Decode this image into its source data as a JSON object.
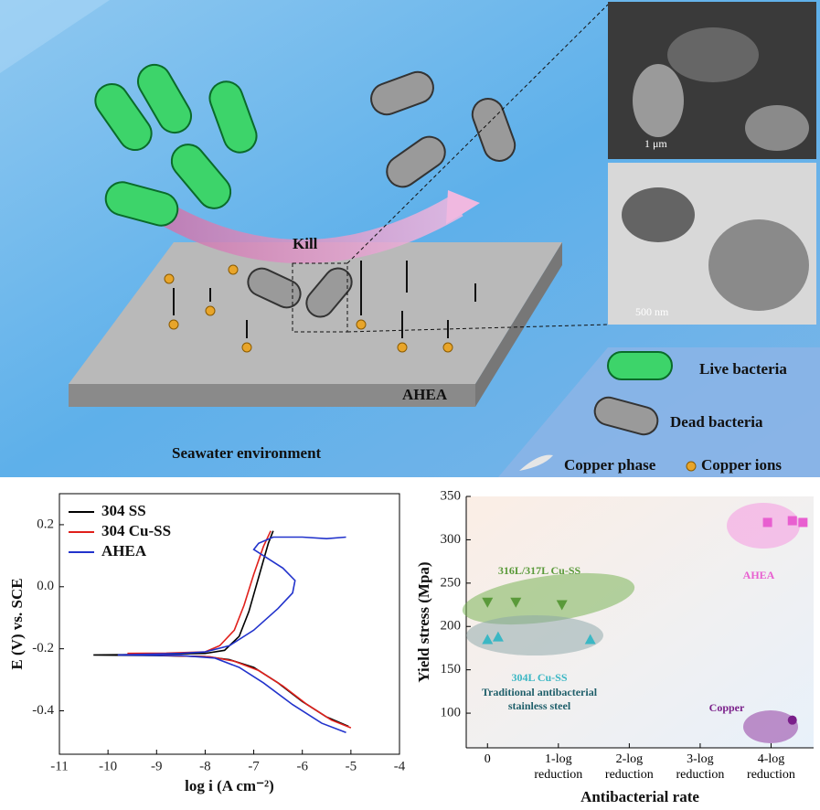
{
  "illustration": {
    "kill": "Kill",
    "substrate": "AHEA",
    "environment": "Seawater environment",
    "legend": {
      "live": "Live bacteria",
      "dead": "Dead bacteria",
      "phase": "Copper phase",
      "ions": "Copper ions"
    },
    "sem_scale": "1 μm",
    "tem_scale": "500 nm"
  },
  "chart_data": [
    {
      "type": "line",
      "x_label": "log i (A cm⁻²)",
      "y_label": "E (V) vs. SCE",
      "xlim": [
        -11,
        -4
      ],
      "xticks": [
        -11,
        -10,
        -9,
        -8,
        -7,
        -6,
        -5,
        -4
      ],
      "ylim": [
        -0.54,
        0.3
      ],
      "yticks": [
        -0.4,
        -0.2,
        {
          "value": 0,
          "label": "0.0"
        },
        0.2
      ],
      "legend": "upper left",
      "series": [
        {
          "name": "304 SS",
          "color": "#000000",
          "x": [
            -5.05,
            -5.5,
            -6.0,
            -6.5,
            -7.0,
            -7.5,
            -8.0,
            -9.0,
            -10.3,
            -9.0,
            -8.0,
            -7.6,
            -7.3,
            -7.1,
            -6.9,
            -6.7,
            -6.6
          ],
          "values": [
            -0.45,
            -0.42,
            -0.37,
            -0.31,
            -0.26,
            -0.235,
            -0.225,
            -0.222,
            -0.22,
            -0.218,
            -0.215,
            -0.205,
            -0.16,
            -0.08,
            0.03,
            0.14,
            0.18
          ]
        },
        {
          "name": "304 Cu-SS",
          "color": "#e0201b",
          "x": [
            -5.0,
            -5.4,
            -5.9,
            -6.4,
            -6.9,
            -7.4,
            -7.9,
            -8.8,
            -9.6,
            -8.8,
            -8.0,
            -7.7,
            -7.4,
            -7.2,
            -7.0,
            -6.8,
            -6.65
          ],
          "values": [
            -0.455,
            -0.43,
            -0.38,
            -0.32,
            -0.27,
            -0.24,
            -0.226,
            -0.222,
            -0.215,
            -0.214,
            -0.21,
            -0.19,
            -0.14,
            -0.06,
            0.04,
            0.13,
            0.18
          ]
        },
        {
          "name": "AHEA",
          "color": "#2233cc",
          "x": [
            -5.1,
            -5.6,
            -6.2,
            -6.8,
            -7.3,
            -7.8,
            -8.5,
            -9.8,
            -8.5,
            -8.0,
            -7.5,
            -7.0,
            -6.5,
            -6.2,
            -6.15,
            -6.4,
            -6.8,
            -7.0,
            -6.9,
            -6.6,
            -6.0,
            -5.5,
            -5.1
          ],
          "values": [
            -0.47,
            -0.44,
            -0.38,
            -0.31,
            -0.26,
            -0.23,
            -0.222,
            -0.22,
            -0.215,
            -0.21,
            -0.19,
            -0.14,
            -0.07,
            -0.02,
            0.02,
            0.06,
            0.1,
            0.12,
            0.14,
            0.16,
            0.16,
            0.155,
            0.16
          ]
        }
      ]
    },
    {
      "type": "scatter",
      "x_label": "Antibacterial rate",
      "y_label": "Yield stress (Mpa)",
      "xlim": [
        -0.3,
        4.6
      ],
      "xticks": [
        0,
        {
          "value": 1,
          "label": "1-log reduction"
        },
        {
          "value": 2,
          "label": "2-log reduction"
        },
        {
          "value": 3,
          "label": "3-log reduction"
        },
        {
          "value": 4,
          "label": "4-log reduction"
        }
      ],
      "ylim": [
        60,
        350
      ],
      "yticks": [
        100,
        150,
        200,
        250,
        300,
        350
      ],
      "annotation": "Traditional antibacterial stainless steel",
      "series": [
        {
          "name": "316L/317L Cu-SS",
          "color": "#5a9a3a",
          "marker": "triangle-down",
          "x": [
            0,
            0.4,
            1.05
          ],
          "values": [
            228,
            228,
            225
          ]
        },
        {
          "name": "304L Cu-SS",
          "color": "#3bb7c4",
          "marker": "triangle-up",
          "x": [
            0,
            0.15,
            1.45
          ],
          "values": [
            185,
            188,
            185
          ]
        },
        {
          "name": "AHEA",
          "color": "#e85fd0",
          "marker": "square",
          "x": [
            3.95,
            4.3,
            4.45
          ],
          "values": [
            320,
            322,
            320
          ]
        },
        {
          "name": "Copper",
          "color": "#7a1f8a",
          "marker": "circle",
          "x": [
            4.3
          ],
          "values": [
            92
          ]
        }
      ]
    }
  ]
}
